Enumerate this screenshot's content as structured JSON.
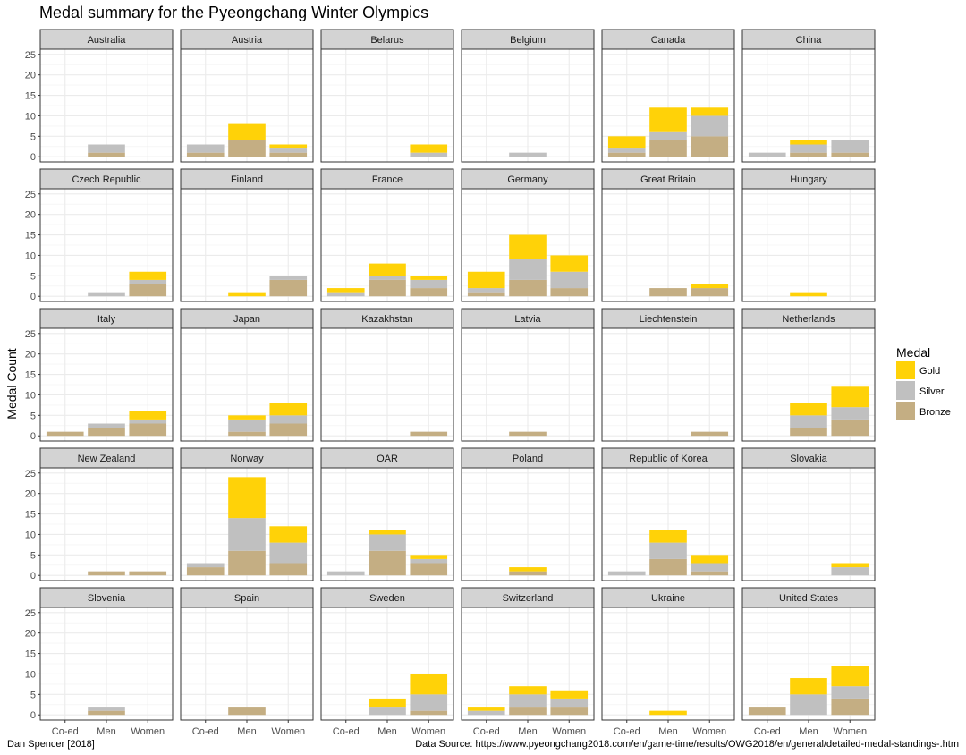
{
  "chart_data": {
    "type": "bar",
    "title": "Medal summary for the Pyeongchang Winter Olympics",
    "ylabel": "Medal Count",
    "xlabel": "",
    "categories": [
      "Co-ed",
      "Men",
      "Women"
    ],
    "ylim": [
      0,
      25
    ],
    "yticks": [
      0,
      5,
      10,
      15,
      20,
      25
    ],
    "stacked": true,
    "grid": true,
    "legend": {
      "title": "Medal",
      "position": "right",
      "entries": [
        {
          "name": "Gold",
          "color": "#FFD208"
        },
        {
          "name": "Silver",
          "color": "#C0C0C0"
        },
        {
          "name": "Bronze",
          "color": "#C4AE83"
        }
      ]
    },
    "panels": [
      {
        "country": "Australia",
        "gold": [
          0,
          0,
          0
        ],
        "silver": [
          0,
          2,
          0
        ],
        "bronze": [
          0,
          1,
          0
        ]
      },
      {
        "country": "Austria",
        "gold": [
          0,
          4,
          1
        ],
        "silver": [
          2,
          0,
          1
        ],
        "bronze": [
          1,
          4,
          1
        ]
      },
      {
        "country": "Belarus",
        "gold": [
          0,
          0,
          2
        ],
        "silver": [
          0,
          0,
          1
        ],
        "bronze": [
          0,
          0,
          0
        ]
      },
      {
        "country": "Belgium",
        "gold": [
          0,
          0,
          0
        ],
        "silver": [
          0,
          1,
          0
        ],
        "bronze": [
          0,
          0,
          0
        ]
      },
      {
        "country": "Canada",
        "gold": [
          3,
          6,
          2
        ],
        "silver": [
          1,
          2,
          5
        ],
        "bronze": [
          1,
          4,
          5
        ]
      },
      {
        "country": "China",
        "gold": [
          0,
          1,
          0
        ],
        "silver": [
          1,
          2,
          3
        ],
        "bronze": [
          0,
          1,
          1
        ]
      },
      {
        "country": "Czech Republic",
        "gold": [
          0,
          0,
          2
        ],
        "silver": [
          0,
          1,
          1
        ],
        "bronze": [
          0,
          0,
          3
        ]
      },
      {
        "country": "Finland",
        "gold": [
          0,
          1,
          0
        ],
        "silver": [
          0,
          0,
          1
        ],
        "bronze": [
          0,
          0,
          4
        ]
      },
      {
        "country": "France",
        "gold": [
          1,
          3,
          1
        ],
        "silver": [
          1,
          1,
          2
        ],
        "bronze": [
          0,
          4,
          2
        ]
      },
      {
        "country": "Germany",
        "gold": [
          4,
          6,
          4
        ],
        "silver": [
          1,
          5,
          4
        ],
        "bronze": [
          1,
          4,
          2
        ]
      },
      {
        "country": "Great Britain",
        "gold": [
          0,
          0,
          1
        ],
        "silver": [
          0,
          0,
          0
        ],
        "bronze": [
          0,
          2,
          2
        ]
      },
      {
        "country": "Hungary",
        "gold": [
          0,
          1,
          0
        ],
        "silver": [
          0,
          0,
          0
        ],
        "bronze": [
          0,
          0,
          0
        ]
      },
      {
        "country": "Italy",
        "gold": [
          0,
          0,
          2
        ],
        "silver": [
          0,
          1,
          1
        ],
        "bronze": [
          1,
          2,
          3
        ]
      },
      {
        "country": "Japan",
        "gold": [
          0,
          1,
          3
        ],
        "silver": [
          0,
          3,
          2
        ],
        "bronze": [
          0,
          1,
          3
        ]
      },
      {
        "country": "Kazakhstan",
        "gold": [
          0,
          0,
          0
        ],
        "silver": [
          0,
          0,
          0
        ],
        "bronze": [
          0,
          0,
          1
        ]
      },
      {
        "country": "Latvia",
        "gold": [
          0,
          0,
          0
        ],
        "silver": [
          0,
          0,
          0
        ],
        "bronze": [
          0,
          1,
          0
        ]
      },
      {
        "country": "Liechtenstein",
        "gold": [
          0,
          0,
          0
        ],
        "silver": [
          0,
          0,
          0
        ],
        "bronze": [
          0,
          0,
          1
        ]
      },
      {
        "country": "Netherlands",
        "gold": [
          0,
          3,
          5
        ],
        "silver": [
          0,
          3,
          3
        ],
        "bronze": [
          0,
          2,
          4
        ]
      },
      {
        "country": "New Zealand",
        "gold": [
          0,
          0,
          0
        ],
        "silver": [
          0,
          0,
          0
        ],
        "bronze": [
          0,
          1,
          1
        ]
      },
      {
        "country": "Norway",
        "gold": [
          0,
          10,
          4
        ],
        "silver": [
          1,
          8,
          5
        ],
        "bronze": [
          2,
          6,
          3
        ]
      },
      {
        "country": "OAR",
        "gold": [
          0,
          1,
          1
        ],
        "silver": [
          1,
          4,
          1
        ],
        "bronze": [
          0,
          6,
          3
        ]
      },
      {
        "country": "Poland",
        "gold": [
          0,
          1,
          0
        ],
        "silver": [
          0,
          0,
          0
        ],
        "bronze": [
          0,
          1,
          0
        ]
      },
      {
        "country": "Republic of Korea",
        "gold": [
          0,
          3,
          2
        ],
        "silver": [
          1,
          4,
          2
        ],
        "bronze": [
          0,
          4,
          1
        ]
      },
      {
        "country": "Slovakia",
        "gold": [
          0,
          0,
          1
        ],
        "silver": [
          0,
          0,
          2
        ],
        "bronze": [
          0,
          0,
          0
        ]
      },
      {
        "country": "Slovenia",
        "gold": [
          0,
          0,
          0
        ],
        "silver": [
          0,
          1,
          0
        ],
        "bronze": [
          0,
          1,
          0
        ]
      },
      {
        "country": "Spain",
        "gold": [
          0,
          0,
          0
        ],
        "silver": [
          0,
          0,
          0
        ],
        "bronze": [
          0,
          2,
          0
        ]
      },
      {
        "country": "Sweden",
        "gold": [
          0,
          2,
          5
        ],
        "silver": [
          0,
          2,
          4
        ],
        "bronze": [
          0,
          0,
          1
        ]
      },
      {
        "country": "Switzerland",
        "gold": [
          1,
          2,
          2
        ],
        "silver": [
          1,
          3,
          2
        ],
        "bronze": [
          0,
          2,
          2
        ]
      },
      {
        "country": "Ukraine",
        "gold": [
          0,
          1,
          0
        ],
        "silver": [
          0,
          0,
          0
        ],
        "bronze": [
          0,
          0,
          0
        ]
      },
      {
        "country": "United States",
        "gold": [
          0,
          4,
          5
        ],
        "silver": [
          0,
          5,
          3
        ],
        "bronze": [
          2,
          0,
          4
        ]
      }
    ]
  },
  "captions": {
    "author": "Dan Spencer [2018]",
    "source": "Data Source: https://www.pyeongchang2018.com/en/game-time/results/OWG2018/en/general/detailed-medal-standings-.htm"
  }
}
